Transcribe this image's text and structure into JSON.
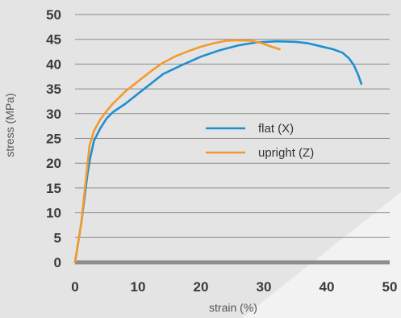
{
  "chart_data": {
    "type": "line",
    "xlabel": "strain (%)",
    "ylabel": "stress (MPa)",
    "xlim": [
      0,
      50
    ],
    "ylim": [
      0,
      50
    ],
    "x_ticks": [
      "0",
      "10",
      "20",
      "30",
      "40",
      "50"
    ],
    "y_ticks": [
      "0",
      "5",
      "10",
      "15",
      "20",
      "25",
      "30",
      "35",
      "40",
      "45",
      "50"
    ],
    "grid": "horizontal",
    "legend_position": "center-right",
    "series": [
      {
        "name": "flat (X)",
        "color": "#1f8fd0",
        "points": [
          [
            0,
            0
          ],
          [
            1,
            8
          ],
          [
            2,
            18
          ],
          [
            2.4,
            21
          ],
          [
            3,
            24.5
          ],
          [
            4,
            27
          ],
          [
            5,
            29
          ],
          [
            6,
            30.3
          ],
          [
            8,
            32
          ],
          [
            10,
            34
          ],
          [
            12,
            36
          ],
          [
            14,
            38
          ],
          [
            17,
            39.8
          ],
          [
            20,
            41.5
          ],
          [
            23,
            42.8
          ],
          [
            26,
            43.8
          ],
          [
            29,
            44.4
          ],
          [
            32,
            44.6
          ],
          [
            35,
            44.5
          ],
          [
            37,
            44.2
          ],
          [
            39,
            43.6
          ],
          [
            41,
            43
          ],
          [
            42.5,
            42.3
          ],
          [
            43.5,
            41.2
          ],
          [
            44.3,
            39.8
          ],
          [
            45,
            37.8
          ],
          [
            45.5,
            36
          ]
        ]
      },
      {
        "name": "upright (Z)",
        "color": "#f39a2e",
        "points": [
          [
            0,
            0
          ],
          [
            1,
            8
          ],
          [
            2,
            20
          ],
          [
            2.3,
            23.5
          ],
          [
            3,
            26.5
          ],
          [
            4,
            28.8
          ],
          [
            5,
            30.5
          ],
          [
            6,
            32
          ],
          [
            8,
            34.5
          ],
          [
            10,
            36.5
          ],
          [
            12,
            38.5
          ],
          [
            14,
            40.3
          ],
          [
            16,
            41.6
          ],
          [
            18,
            42.6
          ],
          [
            20,
            43.5
          ],
          [
            22,
            44.2
          ],
          [
            24,
            44.7
          ],
          [
            26,
            44.8
          ],
          [
            28,
            44.7
          ],
          [
            29.5,
            44.3
          ],
          [
            31,
            43.6
          ],
          [
            32.5,
            43
          ]
        ]
      }
    ]
  }
}
